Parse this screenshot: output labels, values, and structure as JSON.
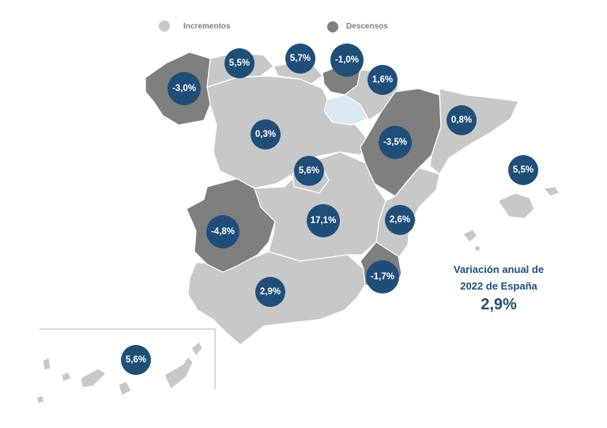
{
  "legend": {
    "increase_label": "Incrementos",
    "decrease_label": "Descensos",
    "increase_color": "#c8c8c8",
    "decrease_color": "#7f7f7f"
  },
  "colors": {
    "bubble": "#1f4e79",
    "no_data_region": "#dbe7f3",
    "border": "#ffffff",
    "canary_frame": "#b0b0b0"
  },
  "regions": [
    {
      "id": "galicia",
      "value": "-3,0%",
      "trend": "decrease"
    },
    {
      "id": "asturias",
      "value": "5,5%",
      "trend": "increase"
    },
    {
      "id": "cantabria",
      "value": "5,7%",
      "trend": "increase"
    },
    {
      "id": "pais-vasco",
      "value": "-1,0%",
      "trend": "decrease"
    },
    {
      "id": "navarra",
      "value": "1,6%",
      "trend": "increase"
    },
    {
      "id": "la-rioja",
      "value": "",
      "trend": "none"
    },
    {
      "id": "aragon",
      "value": "-3,5%",
      "trend": "decrease"
    },
    {
      "id": "cataluna",
      "value": "0,8%",
      "trend": "increase"
    },
    {
      "id": "castilla-y-leon",
      "value": "0,3%",
      "trend": "increase"
    },
    {
      "id": "madrid",
      "value": "5,6%",
      "trend": "increase"
    },
    {
      "id": "castilla-la-mancha",
      "value": "17,1%",
      "trend": "increase"
    },
    {
      "id": "comunidad-valenciana",
      "value": "2,6%",
      "trend": "increase"
    },
    {
      "id": "extremadura",
      "value": "-4,8%",
      "trend": "decrease"
    },
    {
      "id": "andalucia",
      "value": "2,9%",
      "trend": "increase"
    },
    {
      "id": "murcia",
      "value": "-1,7%",
      "trend": "decrease"
    },
    {
      "id": "baleares",
      "value": "5,5%",
      "trend": "increase"
    },
    {
      "id": "canarias",
      "value": "5,6%",
      "trend": "increase"
    }
  ],
  "summary": {
    "line1": "Variación anual de",
    "line2": "2022 de España",
    "value": "2,9%"
  }
}
